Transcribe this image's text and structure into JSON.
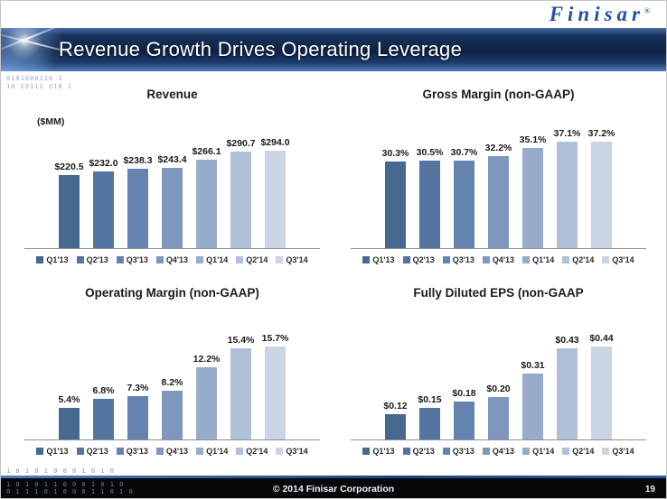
{
  "logo": {
    "text": "Finisar",
    "registered_mark": "®"
  },
  "header": {
    "title": "Revenue Growth Drives Operating Leverage"
  },
  "footer": {
    "copyright": "© 2014 Finisar Corporation",
    "page_number": "19"
  },
  "decor": {
    "header_binary_lines": [
      "0101000110 1",
      "10 10111 010 1"
    ],
    "footer_binary_above": "1 0 1 0 1 0 0 0 1 0 1 0",
    "footer_binary_lines": [
      "1 0 1 0 1 1 0 0 0 1 0 1 0",
      "0 1 1 1 0 1 0 0 0 1 1 0 1 0"
    ]
  },
  "colors": {
    "bar_palette": [
      "#47688F",
      "#54759F",
      "#6484AF",
      "#7E97BE",
      "#97ABCB",
      "#AFC0D9",
      "#C9D4E5"
    ],
    "logo_blue": "#2153A4",
    "header_navy": "#0E2143",
    "footer_line_blue": "#2A5AA0",
    "footer_black": "#07080A"
  },
  "chart_data": [
    {
      "type": "bar",
      "title": "Revenue",
      "ylabel": "($MM)",
      "xlabel": "",
      "categories": [
        "Q1'13",
        "Q2'13",
        "Q3'13",
        "Q4'13",
        "Q1'14",
        "Q2'14",
        "Q3'14"
      ],
      "values": [
        220.5,
        232.0,
        238.3,
        243.4,
        266.1,
        290.7,
        294.0
      ],
      "labels": [
        "$220.5",
        "$232.0",
        "$238.3",
        "$243.4",
        "$266.1",
        "$290.7",
        "$294.0"
      ],
      "ylim": [
        0,
        294
      ],
      "grid": false,
      "legend_position": "bottom"
    },
    {
      "type": "bar",
      "title": "Gross Margin (non-GAAP)",
      "ylabel": "",
      "xlabel": "",
      "categories": [
        "Q1'13",
        "Q2'13",
        "Q3'13",
        "Q4'13",
        "Q1'14",
        "Q2'14",
        "Q3'14"
      ],
      "values": [
        30.3,
        30.5,
        30.7,
        32.2,
        35.1,
        37.1,
        37.2
      ],
      "labels": [
        "30.3%",
        "30.5%",
        "30.7%",
        "32.2%",
        "35.1%",
        "37.1%",
        "37.2%"
      ],
      "ylim": [
        0,
        37.2
      ],
      "grid": false,
      "legend_position": "bottom"
    },
    {
      "type": "bar",
      "title": "Operating Margin (non-GAAP)",
      "ylabel": "",
      "xlabel": "",
      "categories": [
        "Q1'13",
        "Q2'13",
        "Q3'13",
        "Q4'13",
        "Q1'14",
        "Q2'14",
        "Q3'14"
      ],
      "values": [
        5.4,
        6.8,
        7.3,
        8.2,
        12.2,
        15.4,
        15.7
      ],
      "labels": [
        "5.4%",
        "6.8%",
        "7.3%",
        "8.2%",
        "12.2%",
        "15.4%",
        "15.7%"
      ],
      "ylim": [
        0,
        15.7
      ],
      "grid": false,
      "legend_position": "bottom"
    },
    {
      "type": "bar",
      "title": "Fully Diluted EPS  (non-GAAP",
      "ylabel": "",
      "xlabel": "",
      "categories": [
        "Q1'13",
        "Q2'13",
        "Q3'13",
        "Q4'13",
        "Q1'14",
        "Q2'14",
        "Q3'14"
      ],
      "values": [
        0.12,
        0.15,
        0.18,
        0.2,
        0.31,
        0.43,
        0.44
      ],
      "labels": [
        "$0.12",
        "$0.15",
        "$0.18",
        "$0.20",
        "$0.31",
        "$0.43",
        "$0.44"
      ],
      "ylim": [
        0,
        0.44
      ],
      "grid": false,
      "legend_position": "bottom"
    }
  ]
}
